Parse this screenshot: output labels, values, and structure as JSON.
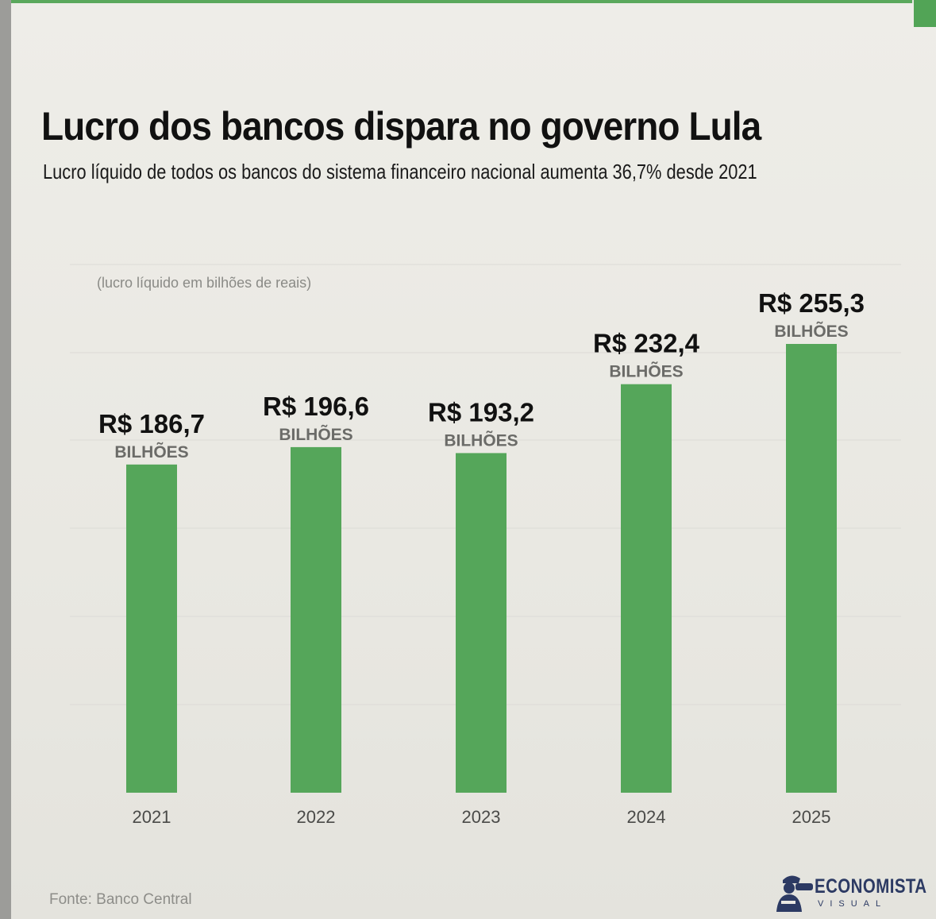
{
  "header": {
    "title": "Lucro dos bancos dispara no governo Lula",
    "subtitle": "Lucro líquido de todos os bancos do sistema financeiro nacional aumenta 36,7% desde 2021"
  },
  "chart_data": {
    "type": "bar",
    "categories": [
      "2021",
      "2022",
      "2023",
      "2024",
      "2025"
    ],
    "values": [
      186.7,
      196.6,
      193.2,
      232.4,
      255.3
    ],
    "value_labels": [
      "R$ 186,7",
      "R$ 196,6",
      "R$ 193,2",
      "R$ 232,4",
      "R$ 255,3"
    ],
    "value_unit_label": "BILHÕES",
    "unit_note": "(lucro líquido em bilhões de reais)",
    "ylim": [
      0,
      255.3
    ],
    "grid": true,
    "colors": {
      "bar": "#55a65a",
      "grid": "#dcdbd6",
      "value_label": "#111111",
      "unit_label": "#6b6b68",
      "tick_label": "#4a4a48"
    }
  },
  "footer": {
    "source": "Fonte: Banco Central",
    "logo_name": "ECONOMISTA",
    "logo_sub": "VISUAL",
    "logo_icon": "person-with-binoculars-icon"
  }
}
